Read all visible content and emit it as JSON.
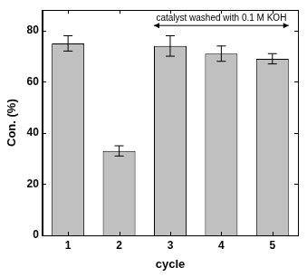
{
  "chart_data": {
    "type": "bar",
    "x_label": "cycle",
    "y_label": "Con. (%)",
    "categories": [
      "1",
      "2",
      "3",
      "4",
      "5"
    ],
    "values": [
      75,
      33,
      74,
      71,
      69
    ],
    "errors": [
      3,
      2,
      4,
      3,
      2
    ],
    "color": "#c0c0c0",
    "ylim": [
      0,
      88
    ],
    "yticks": [
      0,
      20,
      40,
      60,
      80
    ],
    "grid": false,
    "annotations": [
      {
        "text": "catalyst washed with 0.1 M KOH",
        "from": "3",
        "to": "5"
      }
    ]
  }
}
